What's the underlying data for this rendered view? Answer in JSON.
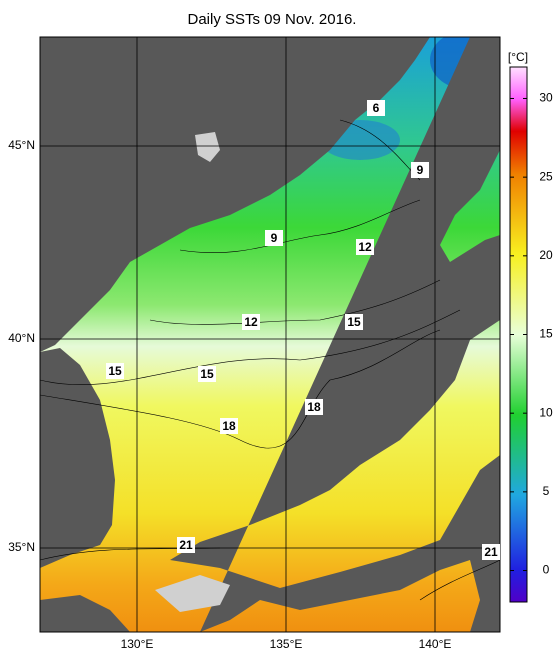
{
  "title": "Daily SSTs 09 Nov. 2016.",
  "lon_labels": [
    "130°E",
    "135°E",
    "140°E"
  ],
  "lat_labels": [
    "45°N",
    "40°N",
    "35°N"
  ],
  "colorbar": {
    "unit": "[°C]",
    "range": [
      -2,
      32
    ],
    "ticks": [
      0,
      5,
      10,
      15,
      20,
      25,
      30
    ]
  },
  "contour_labels": [
    6,
    9,
    9,
    12,
    12,
    15,
    15,
    15,
    18,
    18,
    21,
    21
  ]
}
